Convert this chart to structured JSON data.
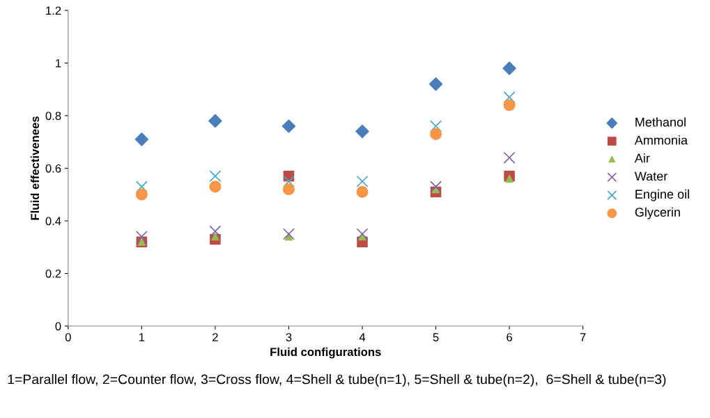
{
  "chart_data": {
    "type": "scatter",
    "xlabel": "Fluid configurations",
    "ylabel": "Fluid effectivenees",
    "x": [
      1,
      2,
      3,
      4,
      5,
      6
    ],
    "xlim": [
      0,
      7
    ],
    "xticks": [
      0,
      1,
      2,
      3,
      4,
      5,
      6,
      7
    ],
    "ylim": [
      0,
      1.2
    ],
    "yticks": [
      0,
      0.2,
      0.4,
      0.6,
      0.8,
      1,
      1.2
    ],
    "grid": false,
    "legend": "right",
    "series": [
      {
        "name": "Methanol",
        "color": "#4a7ebb",
        "marker": "diamond",
        "values": [
          0.71,
          0.78,
          0.76,
          0.74,
          0.92,
          0.98
        ]
      },
      {
        "name": "Ammonia",
        "color": "#be4b48",
        "marker": "square",
        "values": [
          0.32,
          0.33,
          0.57,
          0.32,
          0.51,
          0.57
        ]
      },
      {
        "name": "Air",
        "color": "#98b954",
        "marker": "triangle",
        "values": [
          0.32,
          0.34,
          0.34,
          0.34,
          0.52,
          0.56
        ]
      },
      {
        "name": "Water",
        "color": "#7d60a0",
        "marker": "cross",
        "values": [
          0.34,
          0.36,
          0.35,
          0.35,
          0.53,
          0.64
        ]
      },
      {
        "name": "Engine oil",
        "color": "#46aac5",
        "marker": "cross",
        "values": [
          0.53,
          0.57,
          0.55,
          0.55,
          0.76,
          0.87
        ]
      },
      {
        "name": "Glycerin",
        "color": "#f79646",
        "marker": "circle",
        "values": [
          0.5,
          0.53,
          0.52,
          0.51,
          0.73,
          0.84
        ]
      }
    ],
    "annotations": [
      "1=Parallel flow, 2=Counter flow, 3=Cross flow, 4=Shell & tube(n=1), 5=Shell & tube(n=2),  6=Shell & tube(n=3)"
    ]
  }
}
